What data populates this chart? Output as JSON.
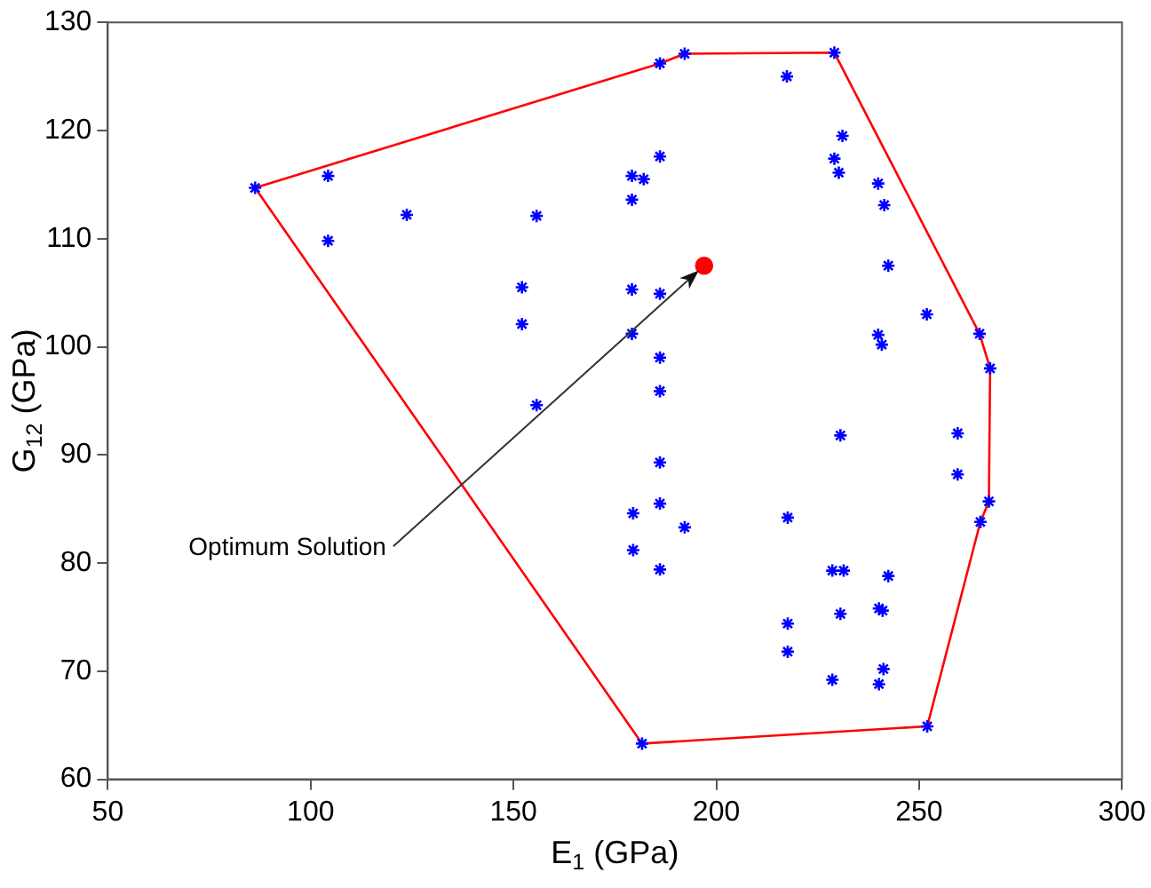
{
  "chart_data": {
    "type": "scatter",
    "xlabel": "E$_{1}$ (GPa)",
    "ylabel": "G$_{12}$ (GPa)",
    "xlim": [
      50,
      300
    ],
    "xticks": [
      50,
      100,
      150,
      200,
      250,
      300
    ],
    "ylim": [
      60,
      130
    ],
    "yticks": [
      60,
      70,
      80,
      90,
      100,
      110,
      120,
      130
    ],
    "grid": false,
    "legend": false,
    "series": [
      {
        "type": "line",
        "color": "#ff0000",
        "marker": "none",
        "line_style": "solid",
        "x": [
          86.3,
          186.1,
          192.2,
          229.1,
          264.9,
          267.5
        ],
        "values": [
          114.7,
          126.2,
          127.1,
          127.2,
          101.2,
          98.0
        ]
      },
      {
        "type": "line",
        "color": "#ff0000",
        "marker": "none",
        "line_style": "solid",
        "x": [
          86.3,
          181.7,
          252.0,
          265.1,
          267.2,
          267.5
        ],
        "values": [
          114.7,
          63.3,
          64.9,
          83.8,
          85.7,
          98.0
        ]
      },
      {
        "color": "#0000ff",
        "marker": "cross",
        "x": [
          86.3,
          104.3,
          104.3,
          123.7,
          155.7,
          152.1,
          152.1,
          155.7,
          179.2,
          179.2,
          182.1,
          186.1,
          186.1,
          179.2,
          179.2,
          186.1,
          186.1,
          186.1,
          192.2,
          217.4,
          229.1,
          231.1,
          229.1,
          230.2,
          239.9,
          241.4,
          242.4,
          251.9,
          239.9,
          240.8,
          264.9,
          267.5,
          186.1,
          179.5,
          186.1,
          192.2,
          179.5,
          186.1,
          181.7,
          217.6,
          217.6,
          217.6,
          228.6,
          230.6,
          259.5,
          259.5,
          267.2,
          265.1,
          228.6,
          230.2,
          231.4,
          242.4,
          230.6,
          240.1,
          241.0,
          241.2,
          240.1,
          252.0
        ],
        "values": [
          114.7,
          115.8,
          109.8,
          112.2,
          112.1,
          105.5,
          102.1,
          94.6,
          113.6,
          115.8,
          115.5,
          117.6,
          104.9,
          105.3,
          101.2,
          99.0,
          95.9,
          126.2,
          127.1,
          125.0,
          127.2,
          119.5,
          117.4,
          116.1,
          115.1,
          113.1,
          107.5,
          103.0,
          101.1,
          100.2,
          101.2,
          98.0,
          89.3,
          84.6,
          85.5,
          83.3,
          81.2,
          79.4,
          63.3,
          84.2,
          74.4,
          71.8,
          69.2,
          91.8,
          92.0,
          88.2,
          85.7,
          83.8,
          79.3,
          null,
          79.3,
          78.8,
          75.3,
          75.8,
          75.6,
          70.2,
          68.8,
          64.9
        ]
      },
      {
        "color": "#ff0000",
        "marker": "circle",
        "x": [
          197.0
        ],
        "values": [
          107.5
        ]
      }
    ],
    "annotations": [
      "Optimum Solution"
    ]
  }
}
